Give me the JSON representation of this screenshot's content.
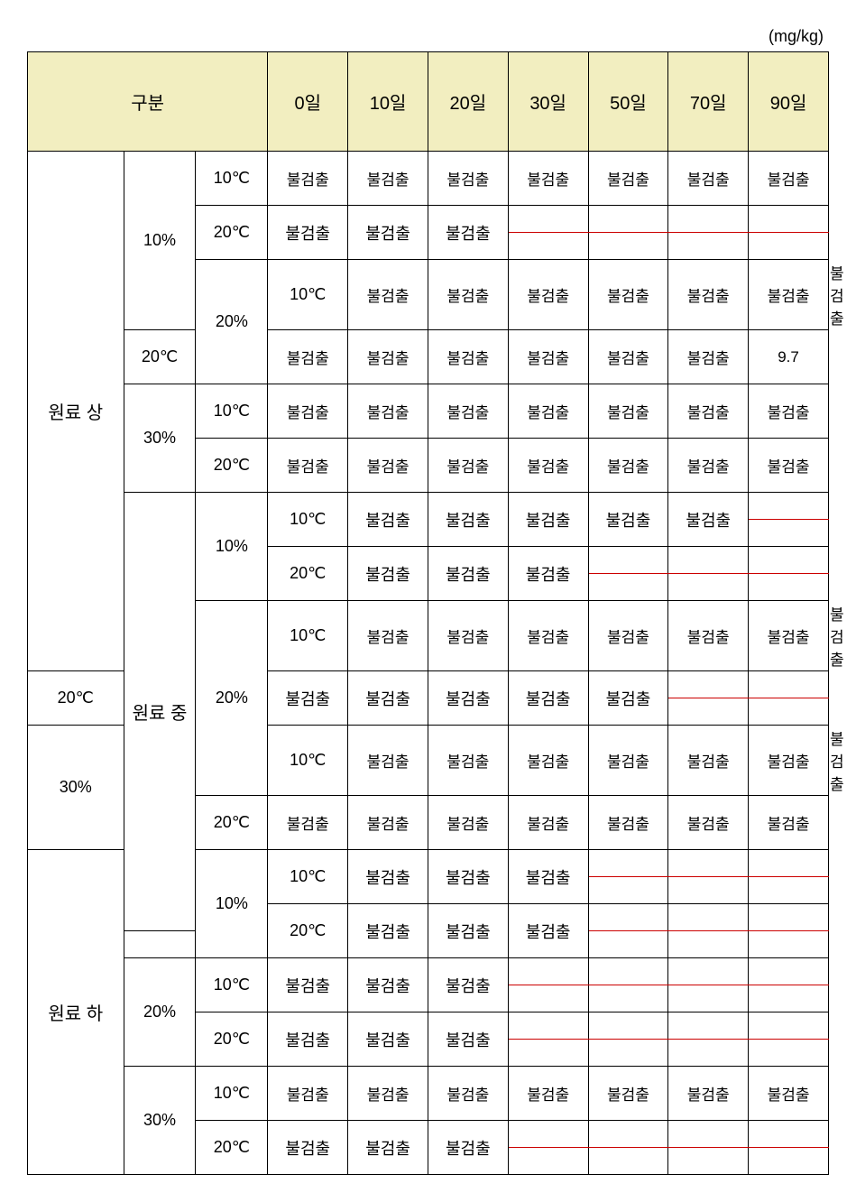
{
  "unit_label": "(mg/kg)",
  "header": {
    "category": "구분",
    "days": [
      "0일",
      "10일",
      "20일",
      "30일",
      "50일",
      "70일",
      "90일"
    ]
  },
  "rows": [
    {
      "group": "원료 상",
      "pct": "10%",
      "temp": "10℃",
      "d0": "불검출",
      "d10": "불검출",
      "d20": "불검출",
      "d30": "불검출",
      "d50": "불검출",
      "d70": "불검출",
      "d90": "불검출",
      "pattern": "full",
      "gspan": 12,
      "pspan": 4
    },
    {
      "group": "원료 상",
      "pct": "10%",
      "temp": "20℃",
      "d0": "불검출",
      "d10": "불검출",
      "d20": "불검출",
      "d30": "",
      "d50": "",
      "d70": "",
      "d90": "",
      "pattern": "to20_red4"
    },
    {
      "group": "원료 상",
      "pct": "20%",
      "temp": "10℃",
      "d0": "불검출",
      "d10": "불검출",
      "d20": "불검출",
      "d30": "불검출",
      "d50": "불검출",
      "d70": "불검출",
      "d90": "불검출",
      "pattern": "full",
      "pspan": 2
    },
    {
      "group": "원료 상",
      "pct": "20%",
      "temp": "20℃",
      "d0": "불검출",
      "d10": "불검출",
      "d20": "불검출",
      "d30": "불검출",
      "d50": "불검출",
      "d70": "불검출",
      "d90": "9.7",
      "pattern": "full"
    },
    {
      "group": "원료 상",
      "pct": "30%",
      "temp": "10℃",
      "d0": "불검출",
      "d10": "불검출",
      "d20": "불검출",
      "d30": "불검출",
      "d50": "불검출",
      "d70": "불검출",
      "d90": "불검출",
      "pattern": "full",
      "pspan": 2
    },
    {
      "group": "원료 상",
      "pct": "30%",
      "temp": "20℃",
      "d0": "불검출",
      "d10": "불검출",
      "d20": "불검출",
      "d30": "불검출",
      "d50": "불검출",
      "d70": "불검출",
      "d90": "불검출",
      "pattern": "full"
    },
    {
      "group": "원료 중",
      "pct": "10%",
      "temp": "10℃",
      "d0": "불검출",
      "d10": "불검출",
      "d20": "불검출",
      "d30": "불검출",
      "d50": "불검출",
      "d70": "",
      "d90": "",
      "pattern": "to50_red2",
      "gspan": 12,
      "pspan": 4
    },
    {
      "group": "원료 중",
      "pct": "10%",
      "temp": "20℃",
      "d0": "불검출",
      "d10": "불검출",
      "d20": "불검출",
      "d30": "",
      "d50": "",
      "d70": "",
      "d90": "",
      "pattern": "to20_red4"
    },
    {
      "group": "원료 중",
      "pct": "20%",
      "temp": "10℃",
      "d0": "불검출",
      "d10": "불검출",
      "d20": "불검출",
      "d30": "불검출",
      "d50": "불검출",
      "d70": "불검출",
      "d90": "불검출",
      "pattern": "full",
      "pspan": 4
    },
    {
      "group": "원료 중",
      "pct": "20%",
      "temp": "20℃",
      "d0": "불검출",
      "d10": "불검출",
      "d20": "불검출",
      "d30": "불검출",
      "d50": "불검출",
      "d70": "",
      "d90": "",
      "pattern": "to50_red2"
    },
    {
      "group": "원료 중",
      "pct": "30%",
      "temp": "10℃",
      "d0": "불검출",
      "d10": "불검출",
      "d20": "불검출",
      "d30": "불검출",
      "d50": "불검출",
      "d70": "불검출",
      "d90": "불검출",
      "pattern": "full",
      "pspan": 2
    },
    {
      "group": "원료 중",
      "pct": "30%",
      "temp": "20℃",
      "d0": "불검출",
      "d10": "불검출",
      "d20": "불검출",
      "d30": "불검출",
      "d50": "불검출",
      "d70": "불검출",
      "d90": "불검출",
      "pattern": "full"
    },
    {
      "group": "원료 하",
      "pct": "10%",
      "temp": "10℃",
      "d0": "불검출",
      "d10": "불검출",
      "d20": "불검출",
      "d30": "",
      "d50": "",
      "d70": "",
      "d90": "",
      "pattern": "to20_red4",
      "gspan": 12,
      "pspan": 4
    },
    {
      "group": "원료 하",
      "pct": "10%",
      "temp": "20℃",
      "d0": "불검출",
      "d10": "불검출",
      "d20": "불검출",
      "d30": "",
      "d50": "",
      "d70": "",
      "d90": "",
      "pattern": "to20_red4"
    },
    {
      "group": "원료 하",
      "pct": "20%",
      "temp": "10℃",
      "d0": "불검출",
      "d10": "불검출",
      "d20": "불검출",
      "d30": "",
      "d50": "",
      "d70": "",
      "d90": "",
      "pattern": "to20_red4",
      "pspan": 4
    },
    {
      "group": "원료 하",
      "pct": "20%",
      "temp": "20℃",
      "d0": "불검출",
      "d10": "불검출",
      "d20": "불검출",
      "d30": "",
      "d50": "",
      "d70": "",
      "d90": "",
      "pattern": "to20_red4"
    },
    {
      "group": "원료 하",
      "pct": "30%",
      "temp": "10℃",
      "d0": "불검출",
      "d10": "불검출",
      "d20": "불검출",
      "d30": "불검출",
      "d50": "불검출",
      "d70": "불검출",
      "d90": "불검출",
      "pattern": "full",
      "pspan": 4
    },
    {
      "group": "원료 하",
      "pct": "30%",
      "temp": "20℃",
      "d0": "불검출",
      "d10": "불검출",
      "d20": "불검출",
      "d30": "",
      "d50": "",
      "d70": "",
      "d90": "",
      "pattern": "to20_red4"
    }
  ],
  "styling": {
    "header_bg": "#f2eec0",
    "border_color": "#000000",
    "red_border_color": "#cc0000",
    "background_color": "#ffffff",
    "font_family": "Malgun Gothic",
    "header_fontsize": 20,
    "cell_fontsize": 17,
    "group_fontsize": 20
  }
}
